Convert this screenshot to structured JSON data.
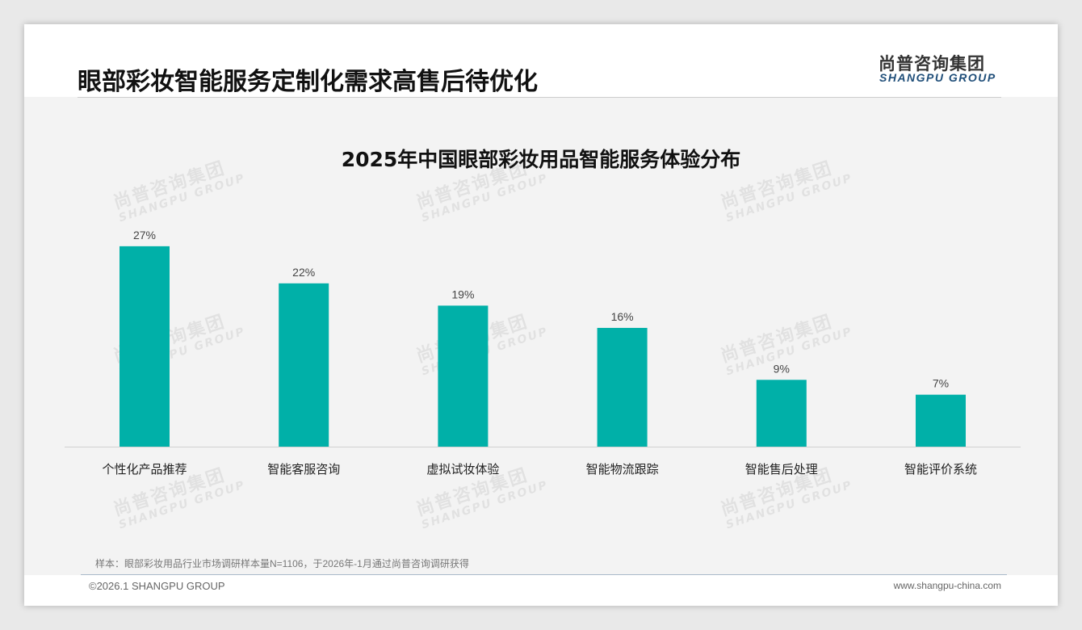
{
  "header": {
    "title": "眼部彩妆智能服务定制化需求高售后待优化",
    "logo_cn": "尚普咨询集团",
    "logo_en": "SHANGPU GROUP"
  },
  "watermark": {
    "cn": "尚普咨询集团",
    "en": "SHANGPU GROUP"
  },
  "chart_data": {
    "type": "bar",
    "title": "2025年中国眼部彩妆用品智能服务体验分布",
    "categories": [
      "个性化产品推荐",
      "智能客服咨询",
      "虚拟试妆体验",
      "智能物流跟踪",
      "智能售后处理",
      "智能评价系统"
    ],
    "values": [
      27,
      22,
      19,
      16,
      9,
      7
    ],
    "data_labels": [
      "27%",
      "22%",
      "19%",
      "16%",
      "9%",
      "7%"
    ],
    "unit": "%",
    "xlabel": "",
    "ylabel": "",
    "ylim": [
      0,
      30
    ],
    "grid": false,
    "legend": "none",
    "color": "#00b0a8"
  },
  "footer": {
    "note": "样本：眼部彩妆用品行业市场调研样本量N=1106，于2026年-1月通过尚普咨询调研获得",
    "copyright": "©2026.1 SHANGPU GROUP",
    "website": "www.shangpu-china.com"
  }
}
